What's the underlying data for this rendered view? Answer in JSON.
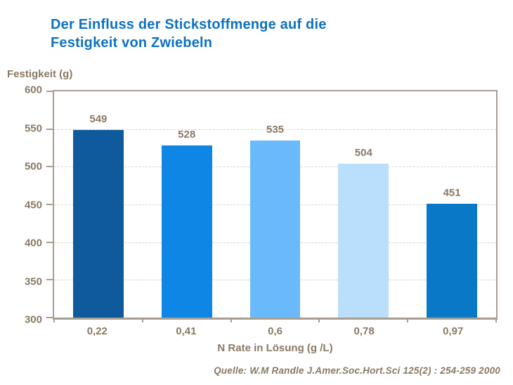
{
  "title": {
    "lines": [
      "Der Einfluss der Stickstoffmenge auf die",
      "Festigkeit von Zwiebeln"
    ],
    "color": "#0D72C2"
  },
  "source": "Quelle: W.M Randle  J.Amer.Soc.Hort.Sci 125(2) : 254-259 2000",
  "colors": {
    "text_brown": "#8A7964",
    "axis": "#A89E90",
    "gridline": "#DCD4C8",
    "background": "#FFFFFF"
  },
  "chart_data": {
    "type": "bar",
    "title": "Der Einfluss der Stickstoffmenge auf die Festigkeit von Zwiebeln",
    "categories": [
      "0,22",
      "0,41",
      "0,6",
      "0,78",
      "0,97"
    ],
    "values": [
      549,
      528,
      535,
      504,
      451
    ],
    "bar_colors": [
      "#0F5A9C",
      "#0D86E6",
      "#6ABAFB",
      "#B9DFFC",
      "#0979C7"
    ],
    "xlabel": "N Rate in Lösung (g /L)",
    "ylabel": "Festigkeit (g)",
    "ylim": [
      300,
      600
    ],
    "ytick_step": 50,
    "yticks": [
      300,
      350,
      400,
      450,
      500,
      550,
      600
    ],
    "grid": "horizontal-dashed",
    "legend": "none",
    "data_labels": true
  }
}
